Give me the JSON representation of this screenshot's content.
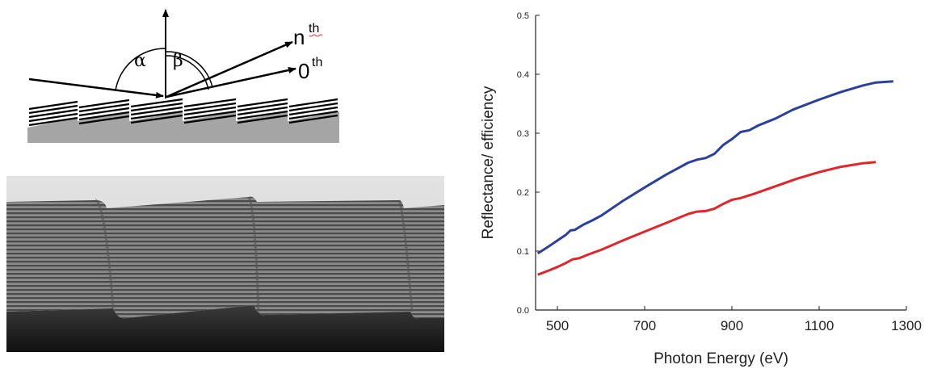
{
  "schematic": {
    "alpha_symbol": "α",
    "beta_symbol": "β",
    "nth_order_base": "n",
    "nth_order_sup": "th",
    "zeroth_order_base": "0",
    "zeroth_order_sup": "th"
  },
  "tem_image": {
    "description_free": true
  },
  "chart_data": {
    "type": "line",
    "xlabel": "Photon Energy (eV)",
    "ylabel": "Reflectance/ efficiency",
    "xlim": [
      450,
      1300
    ],
    "ylim": [
      0.0,
      0.5
    ],
    "x_ticks": [
      500,
      700,
      900,
      1100,
      1300
    ],
    "y_ticks": [
      0.0,
      0.1,
      0.2,
      0.3,
      0.4,
      0.5
    ],
    "y_tick_labels": [
      "0.0",
      "0.1",
      "0.2",
      "0.3",
      "0.4",
      "0.5"
    ],
    "grid": false,
    "series": [
      {
        "color": "#2b3fa0",
        "x": [
          455,
          480,
          500,
          520,
          530,
          540,
          560,
          580,
          600,
          650,
          700,
          750,
          800,
          820,
          840,
          860,
          880,
          900,
          920,
          940,
          960,
          1000,
          1040,
          1100,
          1150,
          1200,
          1230,
          1250,
          1270
        ],
        "y": [
          0.096,
          0.108,
          0.118,
          0.128,
          0.135,
          0.136,
          0.145,
          0.152,
          0.16,
          0.185,
          0.208,
          0.23,
          0.25,
          0.255,
          0.258,
          0.265,
          0.28,
          0.29,
          0.302,
          0.305,
          0.313,
          0.325,
          0.34,
          0.357,
          0.37,
          0.381,
          0.386,
          0.387,
          0.388
        ]
      },
      {
        "color": "#e0262b",
        "x": [
          455,
          480,
          500,
          520,
          535,
          550,
          570,
          600,
          650,
          700,
          750,
          800,
          820,
          840,
          860,
          880,
          900,
          920,
          950,
          1000,
          1050,
          1100,
          1150,
          1200,
          1230
        ],
        "y": [
          0.06,
          0.067,
          0.073,
          0.08,
          0.086,
          0.088,
          0.094,
          0.102,
          0.118,
          0.133,
          0.148,
          0.163,
          0.167,
          0.168,
          0.172,
          0.18,
          0.187,
          0.19,
          0.197,
          0.21,
          0.223,
          0.234,
          0.243,
          0.249,
          0.251
        ]
      }
    ]
  }
}
